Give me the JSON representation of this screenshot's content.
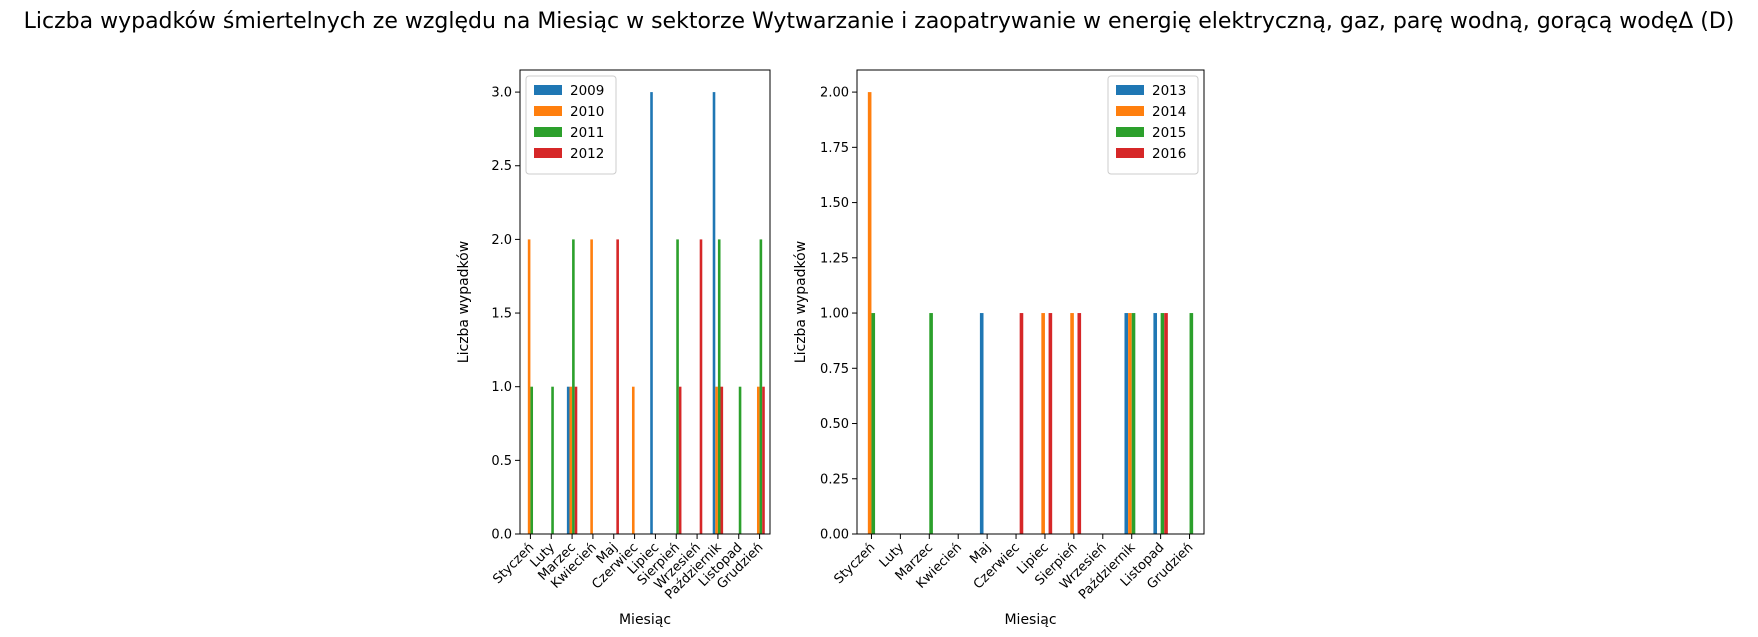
{
  "title": "Liczba wypadków śmiertelnych ze względu na Miesiąc w sektorze Wytwarzanie i zaopatrywanie w energię elektryczną, gaz, parę wodną, gorącą wodęΔ  (D)",
  "colors": [
    "#1f77b4",
    "#ff7f0e",
    "#2ca02c",
    "#d62728"
  ],
  "chart_data": [
    {
      "type": "bar",
      "xlabel": "Miesiąc",
      "ylabel": "Liczba wypadków",
      "ylim": [
        0,
        3.15
      ],
      "yticks": [
        "0.0",
        "0.5",
        "1.0",
        "1.5",
        "2.0",
        "2.5",
        "3.0"
      ],
      "legend_position": "top-left",
      "categories": [
        "Styczeń",
        "Luty",
        "Marzec",
        "Kwiecień",
        "Maj",
        "Czerwiec",
        "Lipiec",
        "Sierpień",
        "Wrzesień",
        "Październik",
        "Listopad",
        "Grudzień"
      ],
      "series": [
        {
          "name": "2009",
          "values": [
            0,
            0,
            1,
            0,
            0,
            0,
            3,
            0,
            0,
            3,
            0,
            0
          ]
        },
        {
          "name": "2010",
          "values": [
            2,
            0,
            1,
            2,
            0,
            1,
            0,
            0,
            0,
            1,
            0,
            1
          ]
        },
        {
          "name": "2011",
          "values": [
            1,
            1,
            2,
            0,
            0,
            0,
            0,
            2,
            0,
            2,
            1,
            2
          ]
        },
        {
          "name": "2012",
          "values": [
            0,
            0,
            1,
            0,
            2,
            0,
            0,
            1,
            2,
            1,
            0,
            1
          ]
        }
      ]
    },
    {
      "type": "bar",
      "xlabel": "Miesiąc",
      "ylabel": "Liczba wypadków",
      "ylim": [
        0,
        2.1
      ],
      "yticks": [
        "0.00",
        "0.25",
        "0.50",
        "0.75",
        "1.00",
        "1.25",
        "1.50",
        "1.75",
        "2.00"
      ],
      "legend_position": "top-right",
      "categories": [
        "Styczeń",
        "Luty",
        "Marzec",
        "Kwiecień",
        "Maj",
        "Czerwiec",
        "Lipiec",
        "Sierpień",
        "Wrzesień",
        "Październik",
        "Listopad",
        "Grudzień"
      ],
      "series": [
        {
          "name": "2013",
          "values": [
            0,
            0,
            0,
            0,
            1,
            0,
            0,
            0,
            0,
            1,
            1,
            0
          ]
        },
        {
          "name": "2014",
          "values": [
            2,
            0,
            0,
            0,
            0,
            0,
            1,
            1,
            0,
            1,
            0,
            0
          ]
        },
        {
          "name": "2015",
          "values": [
            1,
            0,
            1,
            0,
            0,
            0,
            0,
            0,
            0,
            1,
            1,
            1
          ]
        },
        {
          "name": "2016",
          "values": [
            0,
            0,
            0,
            0,
            0,
            1,
            1,
            1,
            0,
            0,
            1,
            0
          ]
        }
      ]
    }
  ]
}
